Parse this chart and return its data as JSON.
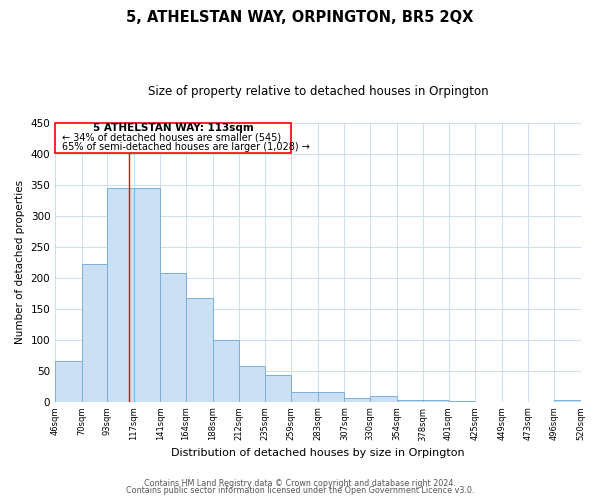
{
  "title": "5, ATHELSTAN WAY, ORPINGTON, BR5 2QX",
  "subtitle": "Size of property relative to detached houses in Orpington",
  "xlabel": "Distribution of detached houses by size in Orpington",
  "ylabel": "Number of detached properties",
  "bar_edges": [
    46,
    70,
    93,
    117,
    141,
    164,
    188,
    212,
    235,
    259,
    283,
    307,
    330,
    354,
    378,
    401,
    425,
    449,
    473,
    496,
    520
  ],
  "bar_heights": [
    65,
    222,
    345,
    345,
    207,
    168,
    100,
    57,
    43,
    16,
    15,
    6,
    9,
    3,
    3,
    1,
    0,
    0,
    0,
    2
  ],
  "bar_color": "#cce0f5",
  "bar_edge_color": "#7ab0d8",
  "property_line_x": 113,
  "ylim": [
    0,
    450
  ],
  "tick_labels": [
    "46sqm",
    "70sqm",
    "93sqm",
    "117sqm",
    "141sqm",
    "164sqm",
    "188sqm",
    "212sqm",
    "235sqm",
    "259sqm",
    "283sqm",
    "307sqm",
    "330sqm",
    "354sqm",
    "378sqm",
    "401sqm",
    "425sqm",
    "449sqm",
    "473sqm",
    "496sqm",
    "520sqm"
  ],
  "annotation_title": "5 ATHELSTAN WAY: 113sqm",
  "annotation_line1": "← 34% of detached houses are smaller (545)",
  "annotation_line2": "65% of semi-detached houses are larger (1,028) →",
  "footer_line1": "Contains HM Land Registry data © Crown copyright and database right 2024.",
  "footer_line2": "Contains public sector information licensed under the Open Government Licence v3.0.",
  "background_color": "#ffffff",
  "grid_color": "#c8d8ea"
}
